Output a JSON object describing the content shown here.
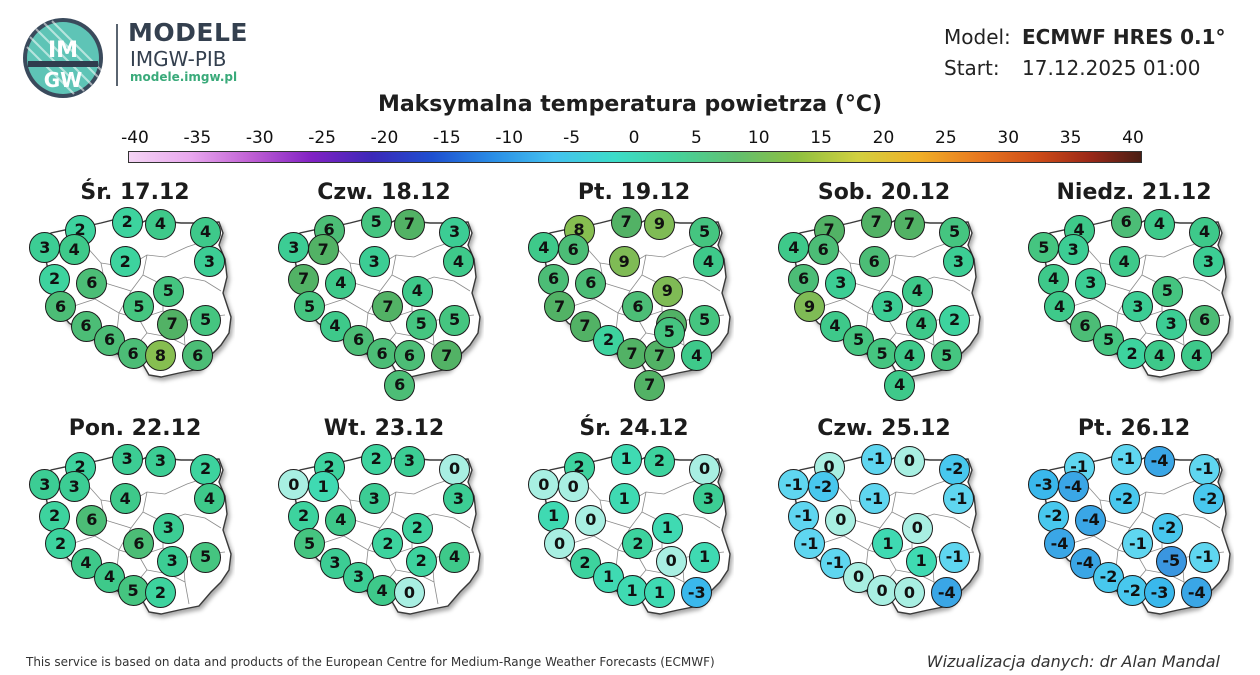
{
  "brand": {
    "logo_text_top": "IM",
    "logo_text_bottom": "GW",
    "title": "MODELE",
    "subtitle": "IMGW-PIB",
    "url": "modele.imgw.pl"
  },
  "meta": {
    "model_label": "Model:",
    "model_value": "ECMWF HRES 0.1°",
    "start_label": "Start:",
    "start_value": "17.12.2025 01:00"
  },
  "title": "Maksymalna temperatura powietrza (°C)",
  "scale": {
    "ticks": [
      "-40",
      "-35",
      "-30",
      "-25",
      "-20",
      "-15",
      "-10",
      "-5",
      "0",
      "5",
      "10",
      "15",
      "20",
      "25",
      "30",
      "35",
      "40"
    ],
    "min": -40,
    "max": 40
  },
  "days": [
    {
      "label": "Śr. 17.12",
      "values": [
        2,
        2,
        4,
        4,
        3,
        4,
        3,
        2,
        2,
        6,
        5,
        6,
        5,
        7,
        5,
        6,
        6,
        6,
        8,
        6
      ]
    },
    {
      "label": "Czw. 18.12",
      "values": [
        6,
        5,
        7,
        3,
        3,
        7,
        4,
        3,
        7,
        4,
        4,
        5,
        7,
        5,
        5,
        4,
        6,
        6,
        6,
        7,
        6
      ]
    },
    {
      "label": "Pt. 19.12",
      "values": [
        8,
        7,
        9,
        5,
        4,
        6,
        4,
        9,
        6,
        6,
        9,
        7,
        6,
        7,
        5,
        7,
        2,
        7,
        7,
        4,
        7,
        5
      ]
    },
    {
      "label": "Sob. 20.12",
      "values": [
        7,
        7,
        7,
        5,
        4,
        6,
        3,
        6,
        6,
        3,
        4,
        9,
        3,
        4,
        2,
        4,
        5,
        5,
        4,
        5,
        4
      ]
    },
    {
      "label": "Niedz. 21.12",
      "values": [
        4,
        6,
        4,
        4,
        5,
        3,
        3,
        4,
        4,
        3,
        5,
        4,
        3,
        3,
        6,
        6,
        5,
        2,
        4,
        4
      ]
    },
    {
      "label": "Pon. 22.12",
      "values": [
        2,
        3,
        3,
        2,
        3,
        3,
        4,
        4,
        2,
        6,
        3,
        2,
        6,
        3,
        5,
        4,
        4,
        5,
        2
      ]
    },
    {
      "label": "Wt. 23.12",
      "values": [
        2,
        2,
        3,
        0,
        0,
        1,
        3,
        3,
        2,
        4,
        2,
        5,
        2,
        2,
        4,
        3,
        3,
        4,
        0
      ]
    },
    {
      "label": "Śr. 24.12",
      "values": [
        2,
        1,
        2,
        0,
        0,
        0,
        3,
        1,
        1,
        0,
        1,
        0,
        2,
        0,
        1,
        2,
        1,
        1,
        1,
        -3
      ]
    },
    {
      "label": "Czw. 25.12",
      "values": [
        0,
        -1,
        0,
        -2,
        -1,
        -2,
        -1,
        -1,
        -1,
        0,
        0,
        -1,
        1,
        1,
        -1,
        -1,
        0,
        0,
        0,
        -4
      ]
    },
    {
      "label": "Pt. 26.12",
      "values": [
        -1,
        -1,
        -4,
        -1,
        -3,
        -4,
        -2,
        -2,
        -2,
        -4,
        -2,
        -4,
        -1,
        -5,
        -1,
        -4,
        -2,
        -2,
        -3,
        -4
      ]
    }
  ],
  "footer": {
    "left": "This service is based on data and products of the European Centre for Medium-Range Weather Forecasts (ECMWF)",
    "right": "Wizualizacja danych: dr Alan Mandal"
  }
}
